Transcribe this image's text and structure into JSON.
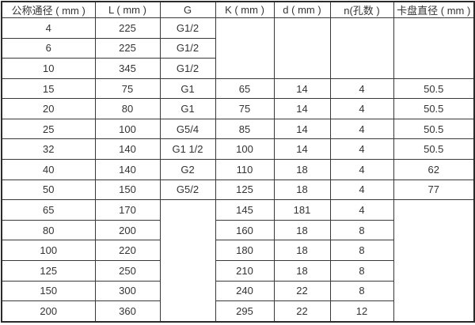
{
  "table": {
    "headers": [
      "公称通径 ( mm )",
      "L ( mm )",
      "G",
      "K ( mm )",
      "d ( mm )",
      "n(孔数 )",
      "卡盘直径 ( mm )"
    ],
    "rows": [
      {
        "dn": "4",
        "L": "225",
        "G": "G1/2",
        "K": "",
        "d": "",
        "n": "",
        "chuck": ""
      },
      {
        "dn": "6",
        "L": "225",
        "G": "G1/2"
      },
      {
        "dn": "10",
        "L": "345",
        "G": "G1/2"
      },
      {
        "dn": "15",
        "L": "75",
        "G": "G1",
        "K": "65",
        "d": "14",
        "n": "4",
        "chuck": "50.5"
      },
      {
        "dn": "20",
        "L": "80",
        "G": "G1",
        "K": "75",
        "d": "14",
        "n": "4",
        "chuck": "50.5"
      },
      {
        "dn": "25",
        "L": "100",
        "G": "G5/4",
        "K": "85",
        "d": "14",
        "n": "4",
        "chuck": "50.5"
      },
      {
        "dn": "32",
        "L": "140",
        "G": "G1 1/2",
        "K": "100",
        "d": "14",
        "n": "4",
        "chuck": "50.5"
      },
      {
        "dn": "40",
        "L": "140",
        "G": "G2",
        "K": "110",
        "d": "18",
        "n": "4",
        "chuck": "62"
      },
      {
        "dn": "50",
        "L": "150",
        "G": "G5/2",
        "K": "125",
        "d": "18",
        "n": "4",
        "chuck": "77"
      },
      {
        "dn": "65",
        "L": "170",
        "G": "",
        "K": "145",
        "d": "181",
        "n": "4",
        "chuck": ""
      },
      {
        "dn": "80",
        "L": "200",
        "K": "160",
        "d": "18",
        "n": "8"
      },
      {
        "dn": "100",
        "L": "220",
        "K": "180",
        "d": "18",
        "n": "8"
      },
      {
        "dn": "125",
        "L": "250",
        "K": "210",
        "d": "18",
        "n": "8"
      },
      {
        "dn": "150",
        "L": "300",
        "K": "240",
        "d": "22",
        "n": "8"
      },
      {
        "dn": "200",
        "L": "360",
        "K": "295",
        "d": "22",
        "n": "12"
      }
    ]
  }
}
